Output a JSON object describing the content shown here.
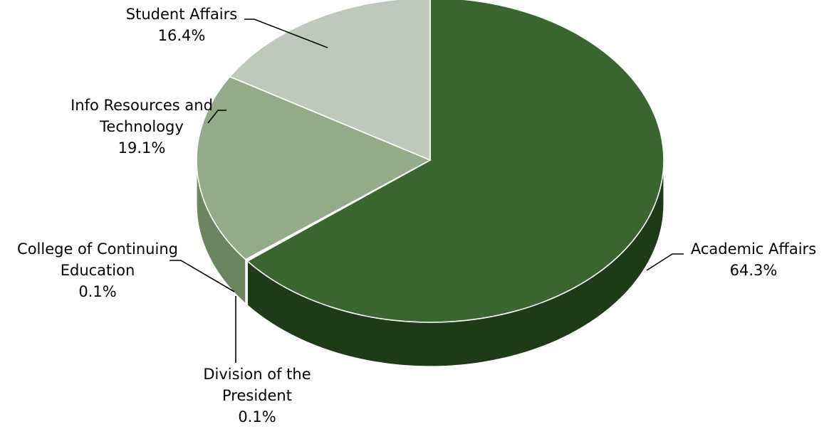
{
  "chart_data": {
    "type": "pie",
    "style": "3d",
    "title": "",
    "start_angle_deg": 0,
    "direction": "clockwise",
    "slices": [
      {
        "label_lines": [
          "Academic Affairs"
        ],
        "value": 64.3,
        "value_label": "64.3%",
        "color": "#3a6530",
        "side_color": "#1f3a19"
      },
      {
        "label_lines": [
          "Division of the",
          "President"
        ],
        "value": 0.1,
        "value_label": "0.1%",
        "color": "#5b7d52",
        "side_color": "#3a5033"
      },
      {
        "label_lines": [
          "College of Continuing",
          "Education"
        ],
        "value": 0.1,
        "value_label": "0.1%",
        "color": "#7d9a74",
        "side_color": "#55704d"
      },
      {
        "label_lines": [
          "Info Resources and",
          "Technology"
        ],
        "value": 19.1,
        "value_label": "19.1%",
        "color": "#93ab88",
        "side_color": "#6a8560"
      },
      {
        "label_lines": [
          "Student Affairs"
        ],
        "value": 16.4,
        "value_label": "16.4%",
        "color": "#bfc9bb",
        "side_color": "#98a393"
      }
    ],
    "legend": "none",
    "data_labels": "outside with leader lines"
  }
}
